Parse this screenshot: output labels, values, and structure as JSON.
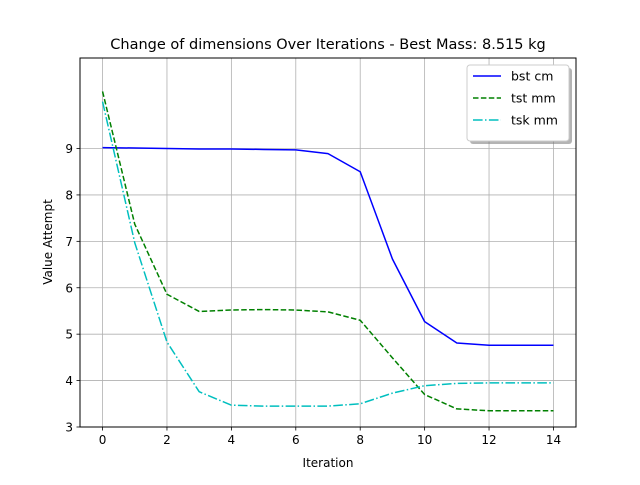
{
  "chart_data": {
    "type": "line",
    "title": "Change of dimensions Over Iterations - Best Mass: 8.515 kg",
    "xlabel": "Iteration",
    "ylabel": "Value Attempt",
    "xlim": [
      -0.7,
      14.7
    ],
    "ylim": [
      3,
      10.95
    ],
    "xticks": [
      0,
      2,
      4,
      6,
      8,
      10,
      12,
      14
    ],
    "yticks": [
      3,
      4,
      5,
      6,
      7,
      8,
      9
    ],
    "grid": true,
    "legend_position": "upper right",
    "x": [
      0,
      1,
      2,
      3,
      4,
      5,
      6,
      7,
      8,
      9,
      10,
      11,
      12,
      13,
      14
    ],
    "series": [
      {
        "name": "bst cm",
        "color": "#0000ff",
        "linestyle": "solid",
        "values": [
          9.02,
          9.01,
          9.0,
          8.99,
          8.99,
          8.98,
          8.97,
          8.89,
          8.5,
          6.62,
          5.27,
          4.81,
          4.76,
          4.76,
          4.76
        ]
      },
      {
        "name": "tst mm",
        "color": "#008000",
        "linestyle": "dashed",
        "values": [
          10.23,
          7.37,
          5.86,
          5.49,
          5.52,
          5.53,
          5.52,
          5.48,
          5.3,
          4.49,
          3.7,
          3.39,
          3.35,
          3.35,
          3.35
        ]
      },
      {
        "name": "tsk mm",
        "color": "#00bfbf",
        "linestyle": "dashdot",
        "values": [
          10.01,
          6.97,
          4.83,
          3.76,
          3.47,
          3.45,
          3.45,
          3.45,
          3.5,
          3.73,
          3.89,
          3.94,
          3.95,
          3.95,
          3.95
        ]
      }
    ],
    "ylabel_color": "#0000ff",
    "ytick_color": "#0000ff"
  }
}
